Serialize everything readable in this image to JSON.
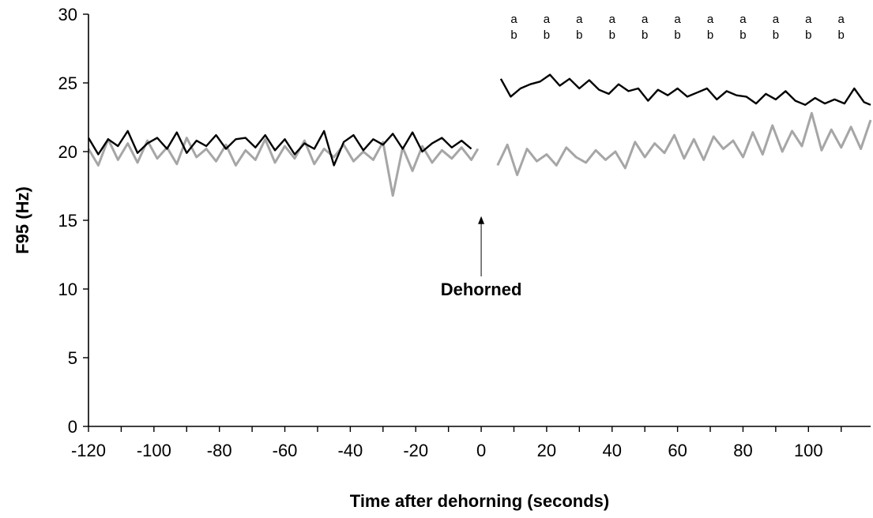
{
  "chart_data": {
    "type": "line",
    "title": "",
    "xlabel": "Time after dehorning (seconds)",
    "ylabel": "F95 (Hz)",
    "xlim": [
      -120,
      119
    ],
    "ylim": [
      0,
      30
    ],
    "x_ticks": [
      -120,
      -100,
      -80,
      -60,
      -40,
      -20,
      0,
      20,
      40,
      60,
      80,
      100
    ],
    "y_ticks": [
      0,
      5,
      10,
      15,
      20,
      25,
      30
    ],
    "grid": false,
    "legend": "none",
    "annotation": {
      "text": "Dehorned",
      "x": 0,
      "arrow_to_y": 15.3
    },
    "significance": {
      "letters": [
        "a",
        "b"
      ],
      "x": [
        10,
        20,
        30,
        40,
        50,
        60,
        70,
        80,
        90,
        100,
        110
      ]
    },
    "series": [
      {
        "color": "#000000",
        "segments": [
          {
            "x": [
              -120,
              -117,
              -114,
              -111,
              -108,
              -105,
              -102,
              -99,
              -96,
              -93,
              -90,
              -87,
              -84,
              -81,
              -78,
              -75,
              -72,
              -69,
              -66,
              -63,
              -60,
              -57,
              -54,
              -51,
              -48,
              -45,
              -42,
              -39,
              -36,
              -33,
              -30,
              -27,
              -24,
              -21,
              -18,
              -15,
              -12,
              -9,
              -6,
              -3
            ],
            "y": [
              21.0,
              19.8,
              20.9,
              20.4,
              21.5,
              19.9,
              20.6,
              21.0,
              20.2,
              21.4,
              19.9,
              20.8,
              20.4,
              21.2,
              20.2,
              20.9,
              21.0,
              20.3,
              21.2,
              20.1,
              20.9,
              19.8,
              20.6,
              20.2,
              21.5,
              19.0,
              20.7,
              21.2,
              20.1,
              20.9,
              20.5,
              21.3,
              20.2,
              21.4,
              20.0,
              20.6,
              21.0,
              20.3,
              20.8,
              20.2
            ]
          },
          {
            "x": [
              6,
              9,
              12,
              15,
              18,
              21,
              24,
              27,
              30,
              33,
              36,
              39,
              42,
              45,
              48,
              51,
              54,
              57,
              60,
              63,
              66,
              69,
              72,
              75,
              78,
              81,
              84,
              87,
              90,
              93,
              96,
              99,
              102,
              105,
              108,
              111,
              114,
              117,
              119
            ],
            "y": [
              25.3,
              24.0,
              24.6,
              24.9,
              25.1,
              25.6,
              24.8,
              25.3,
              24.6,
              25.2,
              24.5,
              24.2,
              24.9,
              24.4,
              24.6,
              23.7,
              24.5,
              24.1,
              24.6,
              24.0,
              24.3,
              24.6,
              23.8,
              24.4,
              24.1,
              24.0,
              23.5,
              24.2,
              23.8,
              24.4,
              23.7,
              23.4,
              23.9,
              23.5,
              23.8,
              23.5,
              24.6,
              23.6,
              23.4
            ]
          }
        ]
      },
      {
        "color": "#a6a6a6",
        "segments": [
          {
            "x": [
              -120,
              -117,
              -114,
              -111,
              -108,
              -105,
              -102,
              -99,
              -96,
              -93,
              -90,
              -87,
              -84,
              -81,
              -78,
              -75,
              -72,
              -69,
              -66,
              -63,
              -60,
              -57,
              -54,
              -51,
              -48,
              -45,
              -42,
              -39,
              -36,
              -33,
              -30,
              -27,
              -24,
              -21,
              -18,
              -15,
              -12,
              -9,
              -6,
              -3,
              -1
            ],
            "y": [
              20.2,
              19.0,
              20.9,
              19.4,
              20.6,
              19.2,
              20.8,
              19.5,
              20.3,
              19.1,
              21.0,
              19.6,
              20.2,
              19.3,
              20.5,
              19.0,
              20.1,
              19.4,
              20.9,
              19.2,
              20.4,
              19.5,
              20.8,
              19.1,
              20.2,
              19.6,
              20.5,
              19.3,
              20.0,
              19.4,
              20.7,
              16.8,
              20.3,
              18.6,
              20.4,
              19.2,
              20.1,
              19.5,
              20.3,
              19.4,
              20.2
            ]
          },
          {
            "x": [
              5,
              8,
              11,
              14,
              17,
              20,
              23,
              26,
              29,
              32,
              35,
              38,
              41,
              44,
              47,
              50,
              53,
              56,
              59,
              62,
              65,
              68,
              71,
              74,
              77,
              80,
              83,
              86,
              89,
              92,
              95,
              98,
              101,
              104,
              107,
              110,
              113,
              116,
              119
            ],
            "y": [
              19.0,
              20.5,
              18.3,
              20.2,
              19.3,
              19.8,
              19.0,
              20.3,
              19.6,
              19.2,
              20.1,
              19.4,
              20.0,
              18.8,
              20.7,
              19.6,
              20.6,
              19.9,
              21.2,
              19.5,
              20.9,
              19.4,
              21.1,
              20.2,
              20.8,
              19.6,
              21.4,
              19.8,
              21.9,
              20.0,
              21.5,
              20.4,
              22.8,
              20.1,
              21.6,
              20.3,
              21.8,
              20.2,
              22.3
            ]
          }
        ]
      }
    ]
  }
}
